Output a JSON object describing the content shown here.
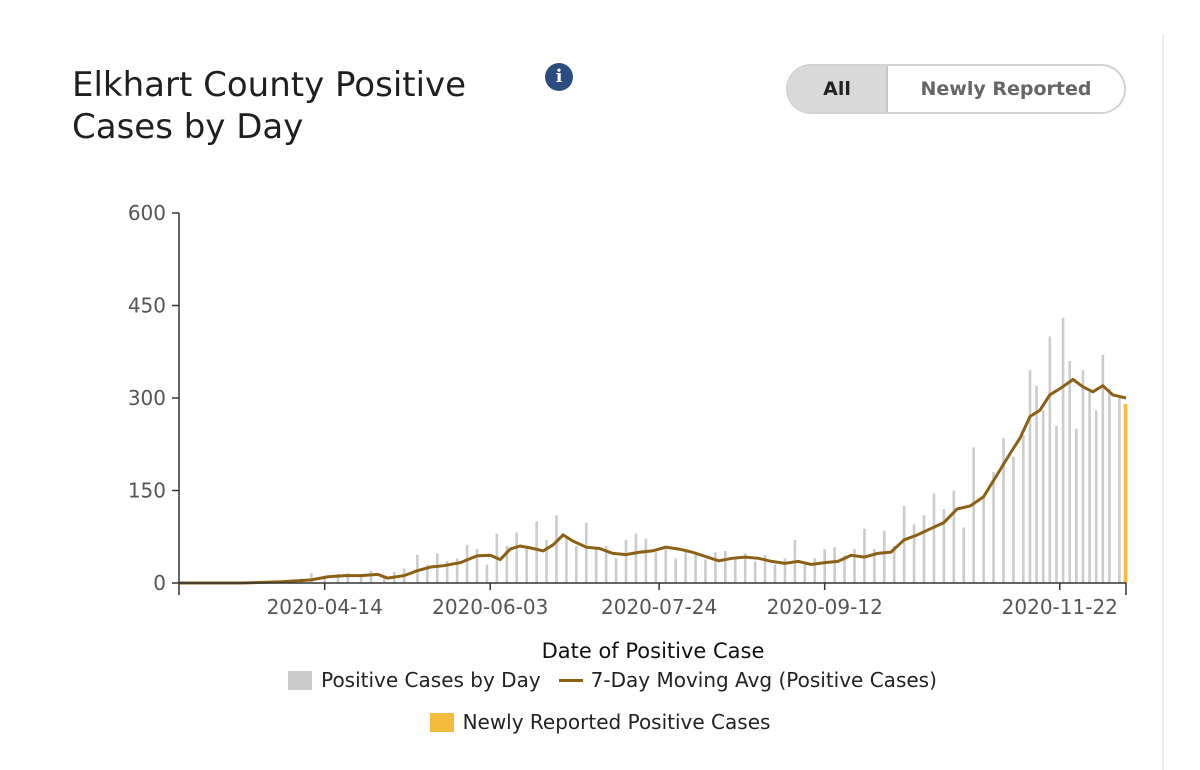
{
  "header": {
    "title": "Elkhart County Positive Cases by Day",
    "info_glyph": "i",
    "info_icon": "info-icon",
    "toggle": {
      "options": [
        "All",
        "Newly Reported"
      ],
      "selected": "All"
    }
  },
  "colors": {
    "bars": "#cccccc",
    "line": "#8b6016",
    "newly": "#f5bb3c",
    "info": "#2b4c7e",
    "axis": "#333333"
  },
  "chart_data": {
    "type": "bar",
    "title": "Elkhart County Positive Cases by Day",
    "xlabel": "Date of Positive Case",
    "ylabel": "",
    "ylim": [
      0,
      600
    ],
    "yticks": [
      0,
      150,
      300,
      450,
      600
    ],
    "x_start": "2020-03-01",
    "x_end": "2020-12-12",
    "xticks": [
      "2020-04-14",
      "2020-06-03",
      "2020-07-24",
      "2020-09-12",
      "2020-11-22"
    ],
    "grid": false,
    "legend": [
      "Positive Cases by Day",
      "7-Day Moving Avg (Positive Cases)",
      "Newly Reported Positive Cases"
    ],
    "legend_position": "bottom",
    "series": [
      {
        "name": "Positive Cases by Day",
        "kind": "bar",
        "color": "#cccccc",
        "points": [
          [
            "2020-03-01",
            0
          ],
          [
            "2020-03-15",
            1
          ],
          [
            "2020-03-25",
            2
          ],
          [
            "2020-04-01",
            4
          ],
          [
            "2020-04-07",
            7
          ],
          [
            "2020-04-10",
            16
          ],
          [
            "2020-04-14",
            12
          ],
          [
            "2020-04-18",
            15
          ],
          [
            "2020-04-21",
            16
          ],
          [
            "2020-04-25",
            12
          ],
          [
            "2020-04-28",
            20
          ],
          [
            "2020-05-02",
            10
          ],
          [
            "2020-05-05",
            18
          ],
          [
            "2020-05-08",
            24
          ],
          [
            "2020-05-12",
            46
          ],
          [
            "2020-05-15",
            30
          ],
          [
            "2020-05-18",
            48
          ],
          [
            "2020-05-21",
            36
          ],
          [
            "2020-05-24",
            40
          ],
          [
            "2020-05-27",
            62
          ],
          [
            "2020-05-30",
            55
          ],
          [
            "2020-06-02",
            30
          ],
          [
            "2020-06-05",
            80
          ],
          [
            "2020-06-08",
            60
          ],
          [
            "2020-06-11",
            82
          ],
          [
            "2020-06-14",
            56
          ],
          [
            "2020-06-17",
            100
          ],
          [
            "2020-06-20",
            70
          ],
          [
            "2020-06-23",
            110
          ],
          [
            "2020-06-26",
            75
          ],
          [
            "2020-06-29",
            60
          ],
          [
            "2020-07-02",
            98
          ],
          [
            "2020-07-05",
            55
          ],
          [
            "2020-07-08",
            60
          ],
          [
            "2020-07-11",
            40
          ],
          [
            "2020-07-14",
            70
          ],
          [
            "2020-07-17",
            80
          ],
          [
            "2020-07-20",
            72
          ],
          [
            "2020-07-23",
            50
          ],
          [
            "2020-07-26",
            55
          ],
          [
            "2020-07-29",
            40
          ],
          [
            "2020-08-01",
            52
          ],
          [
            "2020-08-04",
            45
          ],
          [
            "2020-08-07",
            38
          ],
          [
            "2020-08-10",
            50
          ],
          [
            "2020-08-13",
            52
          ],
          [
            "2020-08-16",
            40
          ],
          [
            "2020-08-19",
            48
          ],
          [
            "2020-08-22",
            35
          ],
          [
            "2020-08-25",
            45
          ],
          [
            "2020-08-28",
            30
          ],
          [
            "2020-08-31",
            40
          ],
          [
            "2020-09-03",
            70
          ],
          [
            "2020-09-06",
            30
          ],
          [
            "2020-09-09",
            40
          ],
          [
            "2020-09-12",
            55
          ],
          [
            "2020-09-15",
            58
          ],
          [
            "2020-09-18",
            45
          ],
          [
            "2020-09-21",
            55
          ],
          [
            "2020-09-24",
            88
          ],
          [
            "2020-09-27",
            55
          ],
          [
            "2020-09-30",
            85
          ],
          [
            "2020-10-03",
            60
          ],
          [
            "2020-10-06",
            125
          ],
          [
            "2020-10-09",
            95
          ],
          [
            "2020-10-12",
            110
          ],
          [
            "2020-10-15",
            145
          ],
          [
            "2020-10-18",
            120
          ],
          [
            "2020-10-21",
            150
          ],
          [
            "2020-10-24",
            90
          ],
          [
            "2020-10-27",
            220
          ],
          [
            "2020-10-30",
            140
          ],
          [
            "2020-11-02",
            180
          ],
          [
            "2020-11-05",
            235
          ],
          [
            "2020-11-08",
            205
          ],
          [
            "2020-11-11",
            240
          ],
          [
            "2020-11-13",
            345
          ],
          [
            "2020-11-15",
            320
          ],
          [
            "2020-11-17",
            280
          ],
          [
            "2020-11-19",
            400
          ],
          [
            "2020-11-21",
            255
          ],
          [
            "2020-11-23",
            430
          ],
          [
            "2020-11-25",
            360
          ],
          [
            "2020-11-27",
            250
          ],
          [
            "2020-11-29",
            345
          ],
          [
            "2020-12-01",
            310
          ],
          [
            "2020-12-03",
            280
          ],
          [
            "2020-12-05",
            370
          ],
          [
            "2020-12-07",
            315
          ],
          [
            "2020-12-10",
            300
          ],
          [
            "2020-12-12",
            290
          ]
        ]
      },
      {
        "name": "7-Day Moving Avg (Positive Cases)",
        "kind": "line",
        "color": "#8b6016",
        "points": [
          [
            "2020-03-01",
            0
          ],
          [
            "2020-03-20",
            0
          ],
          [
            "2020-04-01",
            2
          ],
          [
            "2020-04-10",
            5
          ],
          [
            "2020-04-15",
            10
          ],
          [
            "2020-04-20",
            12
          ],
          [
            "2020-04-25",
            12
          ],
          [
            "2020-04-30",
            14
          ],
          [
            "2020-05-03",
            8
          ],
          [
            "2020-05-08",
            12
          ],
          [
            "2020-05-12",
            20
          ],
          [
            "2020-05-16",
            26
          ],
          [
            "2020-05-20",
            28
          ],
          [
            "2020-05-25",
            33
          ],
          [
            "2020-05-30",
            44
          ],
          [
            "2020-06-03",
            45
          ],
          [
            "2020-06-06",
            38
          ],
          [
            "2020-06-09",
            55
          ],
          [
            "2020-06-12",
            60
          ],
          [
            "2020-06-16",
            56
          ],
          [
            "2020-06-19",
            52
          ],
          [
            "2020-06-22",
            62
          ],
          [
            "2020-06-25",
            78
          ],
          [
            "2020-06-28",
            68
          ],
          [
            "2020-07-02",
            58
          ],
          [
            "2020-07-06",
            56
          ],
          [
            "2020-07-10",
            48
          ],
          [
            "2020-07-14",
            46
          ],
          [
            "2020-07-18",
            50
          ],
          [
            "2020-07-22",
            52
          ],
          [
            "2020-07-26",
            58
          ],
          [
            "2020-07-30",
            55
          ],
          [
            "2020-08-03",
            50
          ],
          [
            "2020-08-07",
            43
          ],
          [
            "2020-08-11",
            36
          ],
          [
            "2020-08-15",
            40
          ],
          [
            "2020-08-19",
            42
          ],
          [
            "2020-08-23",
            40
          ],
          [
            "2020-08-27",
            35
          ],
          [
            "2020-08-31",
            32
          ],
          [
            "2020-09-04",
            35
          ],
          [
            "2020-09-08",
            30
          ],
          [
            "2020-09-12",
            33
          ],
          [
            "2020-09-16",
            35
          ],
          [
            "2020-09-20",
            45
          ],
          [
            "2020-09-24",
            42
          ],
          [
            "2020-09-28",
            48
          ],
          [
            "2020-10-02",
            50
          ],
          [
            "2020-10-06",
            70
          ],
          [
            "2020-10-10",
            78
          ],
          [
            "2020-10-14",
            88
          ],
          [
            "2020-10-18",
            98
          ],
          [
            "2020-10-22",
            120
          ],
          [
            "2020-10-26",
            125
          ],
          [
            "2020-10-30",
            140
          ],
          [
            "2020-11-03",
            175
          ],
          [
            "2020-11-07",
            210
          ],
          [
            "2020-11-10",
            235
          ],
          [
            "2020-11-13",
            270
          ],
          [
            "2020-11-16",
            280
          ],
          [
            "2020-11-19",
            305
          ],
          [
            "2020-11-22",
            315
          ],
          [
            "2020-11-26",
            330
          ],
          [
            "2020-11-29",
            318
          ],
          [
            "2020-12-02",
            310
          ],
          [
            "2020-12-05",
            320
          ],
          [
            "2020-12-08",
            305
          ],
          [
            "2020-12-12",
            300
          ]
        ]
      },
      {
        "name": "Newly Reported Positive Cases",
        "kind": "bar",
        "color": "#f5bb3c",
        "points": [
          [
            "2020-12-12",
            290
          ]
        ]
      }
    ]
  }
}
